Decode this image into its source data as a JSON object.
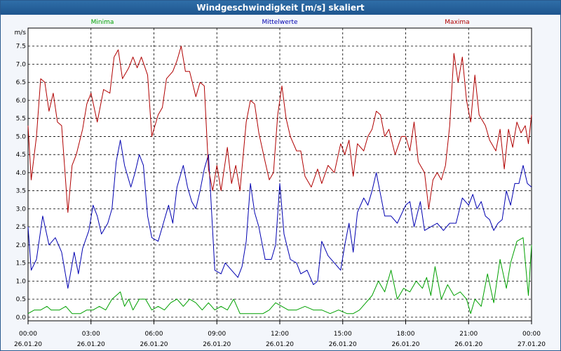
{
  "window": {
    "title": "Windgeschwindigkeit [m/s] skaliert"
  },
  "chart_data": {
    "type": "line",
    "ylabel": "m/s",
    "ylim": [
      -0.1,
      8.0
    ],
    "yticks": [
      "0.0",
      "0.5",
      "1.0",
      "1.5",
      "2.0",
      "2.5",
      "3.0",
      "3.5",
      "4.0",
      "4.5",
      "5.0",
      "5.5",
      "6.0",
      "6.5",
      "7.0",
      "7.5"
    ],
    "xticks": [
      {
        "time": "00:00",
        "date": "26.01.20"
      },
      {
        "time": "03:00",
        "date": "26.01.20"
      },
      {
        "time": "06:00",
        "date": "26.01.20"
      },
      {
        "time": "09:00",
        "date": "26.01.20"
      },
      {
        "time": "12:00",
        "date": "26.01.20"
      },
      {
        "time": "15:00",
        "date": "26.01.20"
      },
      {
        "time": "18:00",
        "date": "26.01.20"
      },
      {
        "time": "21:00",
        "date": "26.01.20"
      },
      {
        "time": "00:00",
        "date": "27.01.20"
      }
    ],
    "xlim_hours": [
      0,
      24
    ],
    "grid": true,
    "series": [
      {
        "name": "Minima",
        "color": "#00a000",
        "points": [
          [
            0,
            0.1
          ],
          [
            0.3,
            0.2
          ],
          [
            0.6,
            0.2
          ],
          [
            0.9,
            0.3
          ],
          [
            1.1,
            0.2
          ],
          [
            1.5,
            0.2
          ],
          [
            1.8,
            0.3
          ],
          [
            2.1,
            0.1
          ],
          [
            2.5,
            0.1
          ],
          [
            2.8,
            0.2
          ],
          [
            3.1,
            0.2
          ],
          [
            3.4,
            0.3
          ],
          [
            3.7,
            0.2
          ],
          [
            4.0,
            0.5
          ],
          [
            4.2,
            0.6
          ],
          [
            4.4,
            0.7
          ],
          [
            4.6,
            0.3
          ],
          [
            4.8,
            0.5
          ],
          [
            5.0,
            0.2
          ],
          [
            5.3,
            0.5
          ],
          [
            5.6,
            0.5
          ],
          [
            5.9,
            0.2
          ],
          [
            6.2,
            0.3
          ],
          [
            6.5,
            0.2
          ],
          [
            6.8,
            0.4
          ],
          [
            7.1,
            0.5
          ],
          [
            7.4,
            0.3
          ],
          [
            7.7,
            0.5
          ],
          [
            8.0,
            0.4
          ],
          [
            8.3,
            0.2
          ],
          [
            8.6,
            0.4
          ],
          [
            8.9,
            0.2
          ],
          [
            9.2,
            0.3
          ],
          [
            9.5,
            0.2
          ],
          [
            9.8,
            0.5
          ],
          [
            10.1,
            0.1
          ],
          [
            10.4,
            0.1
          ],
          [
            10.8,
            0.1
          ],
          [
            11.2,
            0.1
          ],
          [
            11.5,
            0.2
          ],
          [
            11.8,
            0.4
          ],
          [
            12.1,
            0.3
          ],
          [
            12.4,
            0.2
          ],
          [
            12.8,
            0.2
          ],
          [
            13.2,
            0.3
          ],
          [
            13.6,
            0.2
          ],
          [
            14.0,
            0.2
          ],
          [
            14.4,
            0.1
          ],
          [
            14.8,
            0.2
          ],
          [
            15.2,
            0.1
          ],
          [
            15.5,
            0.1
          ],
          [
            15.8,
            0.2
          ],
          [
            16.1,
            0.4
          ],
          [
            16.4,
            0.6
          ],
          [
            16.7,
            1.0
          ],
          [
            17.0,
            0.7
          ],
          [
            17.3,
            1.3
          ],
          [
            17.6,
            0.5
          ],
          [
            17.9,
            0.8
          ],
          [
            18.2,
            0.7
          ],
          [
            18.5,
            1.0
          ],
          [
            18.8,
            0.8
          ],
          [
            19.0,
            1.1
          ],
          [
            19.2,
            0.6
          ],
          [
            19.4,
            1.4
          ],
          [
            19.7,
            0.5
          ],
          [
            20.0,
            0.9
          ],
          [
            20.3,
            0.6
          ],
          [
            20.6,
            0.7
          ],
          [
            20.9,
            0.5
          ],
          [
            21.1,
            0.1
          ],
          [
            21.3,
            0.5
          ],
          [
            21.6,
            0.3
          ],
          [
            21.9,
            1.2
          ],
          [
            22.2,
            0.4
          ],
          [
            22.5,
            1.6
          ],
          [
            22.8,
            0.8
          ],
          [
            23.0,
            1.5
          ],
          [
            23.3,
            2.1
          ],
          [
            23.6,
            2.2
          ],
          [
            23.85,
            0.6
          ],
          [
            24.0,
            2.0
          ]
        ]
      },
      {
        "name": "Mittelwerte",
        "color": "#0000b0",
        "points": [
          [
            0,
            2.5
          ],
          [
            0.15,
            1.3
          ],
          [
            0.4,
            1.6
          ],
          [
            0.7,
            2.8
          ],
          [
            1.0,
            2.0
          ],
          [
            1.3,
            2.2
          ],
          [
            1.6,
            1.8
          ],
          [
            1.9,
            0.8
          ],
          [
            2.2,
            1.8
          ],
          [
            2.4,
            1.2
          ],
          [
            2.6,
            1.9
          ],
          [
            2.9,
            2.4
          ],
          [
            3.1,
            3.1
          ],
          [
            3.3,
            2.8
          ],
          [
            3.5,
            2.3
          ],
          [
            3.8,
            2.6
          ],
          [
            4.0,
            3.0
          ],
          [
            4.2,
            4.3
          ],
          [
            4.4,
            4.9
          ],
          [
            4.6,
            4.2
          ],
          [
            4.9,
            3.6
          ],
          [
            5.1,
            4.0
          ],
          [
            5.3,
            4.5
          ],
          [
            5.5,
            4.2
          ],
          [
            5.7,
            2.8
          ],
          [
            5.9,
            2.2
          ],
          [
            6.2,
            2.1
          ],
          [
            6.4,
            2.5
          ],
          [
            6.7,
            3.1
          ],
          [
            6.9,
            2.6
          ],
          [
            7.1,
            3.6
          ],
          [
            7.4,
            4.2
          ],
          [
            7.6,
            3.6
          ],
          [
            7.8,
            3.2
          ],
          [
            8.0,
            3.0
          ],
          [
            8.2,
            3.5
          ],
          [
            8.4,
            4.1
          ],
          [
            8.6,
            4.5
          ],
          [
            8.9,
            1.3
          ],
          [
            9.2,
            1.2
          ],
          [
            9.4,
            1.5
          ],
          [
            9.7,
            1.3
          ],
          [
            10.0,
            1.1
          ],
          [
            10.2,
            1.4
          ],
          [
            10.4,
            2.1
          ],
          [
            10.6,
            3.7
          ],
          [
            10.8,
            2.9
          ],
          [
            11.0,
            2.5
          ],
          [
            11.3,
            1.6
          ],
          [
            11.6,
            1.6
          ],
          [
            11.8,
            2.0
          ],
          [
            12.0,
            3.7
          ],
          [
            12.2,
            2.3
          ],
          [
            12.5,
            1.6
          ],
          [
            12.8,
            1.5
          ],
          [
            13.0,
            1.2
          ],
          [
            13.3,
            1.3
          ],
          [
            13.6,
            0.9
          ],
          [
            13.8,
            1.0
          ],
          [
            14.0,
            2.1
          ],
          [
            14.3,
            1.7
          ],
          [
            14.6,
            1.5
          ],
          [
            14.9,
            1.3
          ],
          [
            15.1,
            2.0
          ],
          [
            15.3,
            2.6
          ],
          [
            15.5,
            1.8
          ],
          [
            15.7,
            2.9
          ],
          [
            16.0,
            3.3
          ],
          [
            16.2,
            3.1
          ],
          [
            16.4,
            3.5
          ],
          [
            16.6,
            4.0
          ],
          [
            16.8,
            3.4
          ],
          [
            17.0,
            2.8
          ],
          [
            17.3,
            2.8
          ],
          [
            17.6,
            2.6
          ],
          [
            18.0,
            3.1
          ],
          [
            18.2,
            3.2
          ],
          [
            18.4,
            2.5
          ],
          [
            18.7,
            3.2
          ],
          [
            18.9,
            2.4
          ],
          [
            19.2,
            2.5
          ],
          [
            19.5,
            2.6
          ],
          [
            19.8,
            2.4
          ],
          [
            20.1,
            2.6
          ],
          [
            20.4,
            2.6
          ],
          [
            20.7,
            3.3
          ],
          [
            21.0,
            3.1
          ],
          [
            21.2,
            3.4
          ],
          [
            21.4,
            3.0
          ],
          [
            21.6,
            3.2
          ],
          [
            21.8,
            2.8
          ],
          [
            22.0,
            2.7
          ],
          [
            22.2,
            2.4
          ],
          [
            22.4,
            2.6
          ],
          [
            22.6,
            2.7
          ],
          [
            22.8,
            3.5
          ],
          [
            23.0,
            3.1
          ],
          [
            23.2,
            3.7
          ],
          [
            23.4,
            3.7
          ],
          [
            23.6,
            4.2
          ],
          [
            23.8,
            3.7
          ],
          [
            24.0,
            3.6
          ]
        ]
      },
      {
        "name": "Maxima",
        "color": "#b00000",
        "points": [
          [
            0,
            5.3
          ],
          [
            0.15,
            3.8
          ],
          [
            0.4,
            5.0
          ],
          [
            0.6,
            6.6
          ],
          [
            0.8,
            6.5
          ],
          [
            1.0,
            5.7
          ],
          [
            1.2,
            6.2
          ],
          [
            1.4,
            5.4
          ],
          [
            1.6,
            5.3
          ],
          [
            1.9,
            2.9
          ],
          [
            2.1,
            4.2
          ],
          [
            2.3,
            4.5
          ],
          [
            2.6,
            5.2
          ],
          [
            2.8,
            5.9
          ],
          [
            3.0,
            6.2
          ],
          [
            3.3,
            5.4
          ],
          [
            3.6,
            6.3
          ],
          [
            3.9,
            6.2
          ],
          [
            4.1,
            7.2
          ],
          [
            4.3,
            7.4
          ],
          [
            4.5,
            6.6
          ],
          [
            4.8,
            6.9
          ],
          [
            5.0,
            7.2
          ],
          [
            5.2,
            6.9
          ],
          [
            5.4,
            7.2
          ],
          [
            5.7,
            6.7
          ],
          [
            5.9,
            5.0
          ],
          [
            6.2,
            5.6
          ],
          [
            6.4,
            5.8
          ],
          [
            6.6,
            6.6
          ],
          [
            6.9,
            6.8
          ],
          [
            7.1,
            7.1
          ],
          [
            7.3,
            7.5
          ],
          [
            7.5,
            6.8
          ],
          [
            7.7,
            6.8
          ],
          [
            8.0,
            6.1
          ],
          [
            8.2,
            6.5
          ],
          [
            8.4,
            6.4
          ],
          [
            8.6,
            4.1
          ],
          [
            8.8,
            3.5
          ],
          [
            9.0,
            4.2
          ],
          [
            9.2,
            3.5
          ],
          [
            9.5,
            4.7
          ],
          [
            9.7,
            3.7
          ],
          [
            9.9,
            4.2
          ],
          [
            10.1,
            3.5
          ],
          [
            10.4,
            5.4
          ],
          [
            10.6,
            6.0
          ],
          [
            10.8,
            5.9
          ],
          [
            11.0,
            5.1
          ],
          [
            11.3,
            4.3
          ],
          [
            11.5,
            3.8
          ],
          [
            11.7,
            4.0
          ],
          [
            11.9,
            5.6
          ],
          [
            12.1,
            6.4
          ],
          [
            12.3,
            5.5
          ],
          [
            12.5,
            5.0
          ],
          [
            12.8,
            4.6
          ],
          [
            13.0,
            4.6
          ],
          [
            13.2,
            3.9
          ],
          [
            13.5,
            3.6
          ],
          [
            13.8,
            4.1
          ],
          [
            14.0,
            3.7
          ],
          [
            14.3,
            4.2
          ],
          [
            14.6,
            4.0
          ],
          [
            14.9,
            4.8
          ],
          [
            15.1,
            4.5
          ],
          [
            15.3,
            4.9
          ],
          [
            15.5,
            3.9
          ],
          [
            15.7,
            4.8
          ],
          [
            16.0,
            4.6
          ],
          [
            16.2,
            5.0
          ],
          [
            16.4,
            5.2
          ],
          [
            16.6,
            5.7
          ],
          [
            16.8,
            5.6
          ],
          [
            17.0,
            5.0
          ],
          [
            17.2,
            5.2
          ],
          [
            17.5,
            4.5
          ],
          [
            17.8,
            5.0
          ],
          [
            18.0,
            5.0
          ],
          [
            18.2,
            4.6
          ],
          [
            18.4,
            5.4
          ],
          [
            18.6,
            4.3
          ],
          [
            18.9,
            4.0
          ],
          [
            19.1,
            3.0
          ],
          [
            19.3,
            3.8
          ],
          [
            19.5,
            4.0
          ],
          [
            19.7,
            3.8
          ],
          [
            19.9,
            4.2
          ],
          [
            20.1,
            5.3
          ],
          [
            20.3,
            7.3
          ],
          [
            20.5,
            6.5
          ],
          [
            20.7,
            7.2
          ],
          [
            20.9,
            6.0
          ],
          [
            21.1,
            5.4
          ],
          [
            21.3,
            6.7
          ],
          [
            21.5,
            5.6
          ],
          [
            21.8,
            5.3
          ],
          [
            22.0,
            4.9
          ],
          [
            22.3,
            4.6
          ],
          [
            22.5,
            5.2
          ],
          [
            22.7,
            4.1
          ],
          [
            22.9,
            5.2
          ],
          [
            23.1,
            4.7
          ],
          [
            23.3,
            5.4
          ],
          [
            23.5,
            5.1
          ],
          [
            23.7,
            5.3
          ],
          [
            23.85,
            4.8
          ],
          [
            24.0,
            5.6
          ]
        ]
      }
    ]
  }
}
